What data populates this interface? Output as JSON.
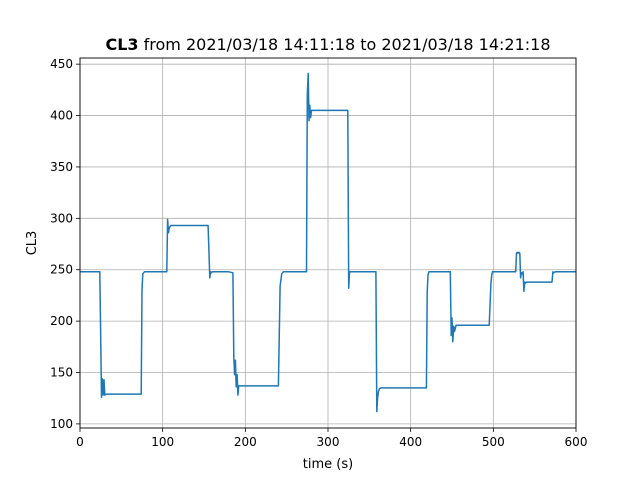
{
  "chart_data": {
    "type": "line",
    "title_bold": "CL3",
    "title_rest": " from 2021/03/18 14:11:18 to 2021/03/18 14:21:18",
    "xlabel": "time (s)",
    "ylabel": "CL3",
    "xlim": [
      0,
      600
    ],
    "ylim": [
      96,
      456
    ],
    "xticks": [
      0,
      100,
      200,
      300,
      400,
      500,
      600
    ],
    "yticks": [
      100,
      150,
      200,
      250,
      300,
      350,
      400,
      450
    ],
    "grid": true,
    "line_color": "#1f77b4",
    "series": [
      {
        "x": [
          0,
          24,
          25,
          26,
          27,
          28,
          29,
          30,
          32,
          50,
          74,
          75,
          76,
          78,
          80,
          105,
          106,
          107,
          108,
          109,
          110,
          130,
          155,
          157,
          158,
          159,
          160,
          180,
          185,
          186,
          187,
          188,
          189,
          190,
          191,
          192,
          194,
          200,
          240,
          242,
          244,
          246,
          250,
          274,
          275,
          276,
          277,
          278,
          279,
          280,
          282,
          300,
          324,
          325,
          326,
          328,
          330,
          358,
          359,
          360,
          361,
          362,
          364,
          366,
          380,
          419,
          420,
          421,
          422,
          424,
          426,
          440,
          448,
          449,
          450,
          451,
          452,
          453,
          454,
          455,
          456,
          460,
          495,
          497,
          498,
          499,
          500,
          520,
          527,
          528,
          529,
          530,
          531,
          532,
          533,
          534,
          535,
          536,
          537,
          538,
          539,
          540,
          541,
          545,
          570,
          571,
          572,
          573,
          575,
          580,
          600
        ],
        "y": [
          248,
          248,
          185,
          126,
          144,
          128,
          143,
          128,
          129,
          129,
          129,
          230,
          246,
          248,
          248,
          248,
          299,
          286,
          291,
          292,
          293,
          293,
          293,
          242,
          248,
          247,
          248,
          248,
          247,
          165,
          148,
          162,
          136,
          148,
          128,
          137,
          137,
          137,
          137,
          234,
          246,
          248,
          248,
          248,
          420,
          441,
          395,
          410,
          398,
          405,
          405,
          405,
          405,
          232,
          248,
          248,
          248,
          248,
          112,
          125,
          131,
          134,
          135,
          135,
          135,
          135,
          228,
          245,
          248,
          248,
          248,
          248,
          248,
          186,
          203,
          180,
          195,
          190,
          193,
          196,
          196,
          196,
          196,
          236,
          245,
          248,
          248,
          248,
          248,
          266,
          267,
          266,
          267,
          266,
          242,
          247,
          246,
          248,
          229,
          238,
          237,
          238,
          238,
          238,
          238,
          238,
          248,
          247,
          248,
          248,
          248
        ]
      }
    ]
  }
}
